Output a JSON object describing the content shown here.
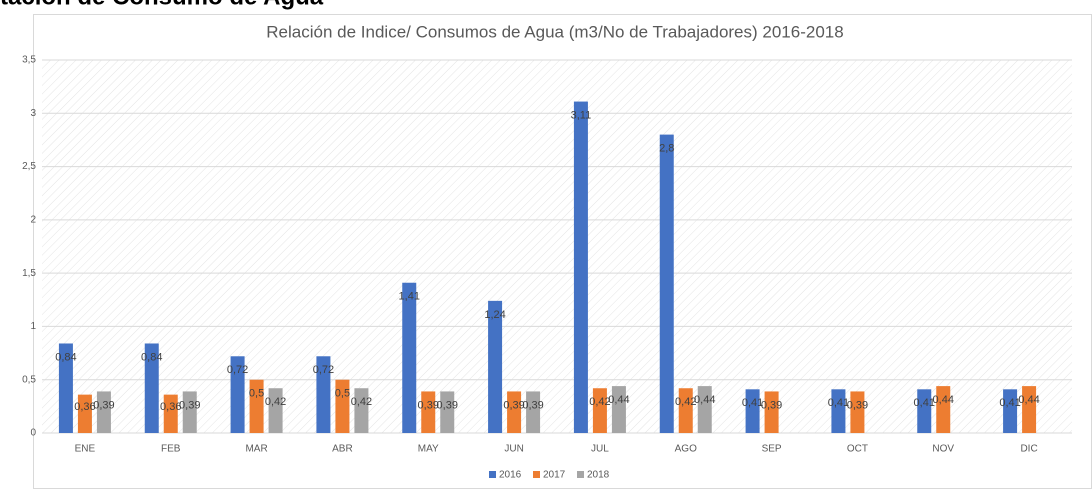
{
  "header": "tación de Consumo de Agua",
  "chart_data": {
    "type": "bar",
    "title": "Relación de Indice/ Consumos de Agua (m3/No de Trabajadores) 2016-2018",
    "categories": [
      "ENE",
      "FEB",
      "MAR",
      "ABR",
      "MAY",
      "JUN",
      "JUL",
      "AGO",
      "SEP",
      "OCT",
      "NOV",
      "DIC"
    ],
    "series": [
      {
        "name": "2016",
        "color": "#4472c4",
        "values": [
          0.84,
          0.84,
          0.72,
          0.72,
          1.41,
          1.24,
          3.11,
          2.8,
          0.41,
          0.41,
          0.41,
          0.41
        ],
        "value_labels": [
          "0,84",
          "0,84",
          "0,72",
          "0,72",
          "1,41",
          "1,24",
          "3,11",
          "2,8",
          "0,41",
          "0,41",
          "0,41",
          "0,41"
        ]
      },
      {
        "name": "2017",
        "color": "#ed7d31",
        "values": [
          0.36,
          0.36,
          0.5,
          0.5,
          0.39,
          0.39,
          0.42,
          0.42,
          0.39,
          0.39,
          0.44,
          0.44
        ],
        "value_labels": [
          "0,36",
          "0,36",
          "0,5",
          "0,5",
          "0,39",
          "0,39",
          "0,42",
          "0,42",
          "0,39",
          "0,39",
          "0,44",
          "0,44"
        ]
      },
      {
        "name": "2018",
        "color": "#a5a5a5",
        "values": [
          0.39,
          0.39,
          0.42,
          0.42,
          0.39,
          0.39,
          0.44,
          0.44,
          null,
          null,
          null,
          null
        ],
        "value_labels": [
          "0,39",
          "0,39",
          "0,42",
          "0,42",
          "0,39",
          "0,39",
          "0,44",
          "0,44",
          null,
          null,
          null,
          null
        ]
      }
    ],
    "ylim": [
      0,
      3.5
    ],
    "yticks": [
      0,
      {
        "value": 0.5,
        "label": "0,5"
      },
      1,
      {
        "value": 1.5,
        "label": "1,5"
      },
      2,
      {
        "value": 2.5,
        "label": "2,5"
      },
      3,
      {
        "value": 3.5,
        "label": "3,5"
      }
    ],
    "grid": true,
    "legend": "bottom"
  }
}
